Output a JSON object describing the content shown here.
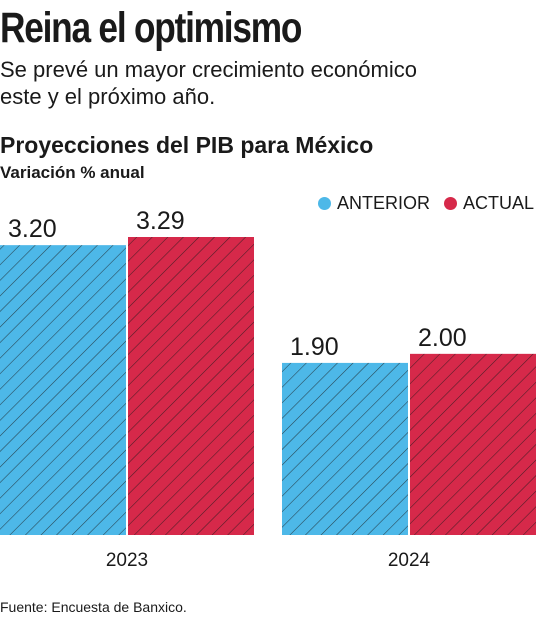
{
  "header": {
    "title": "Reina el optimismo",
    "subtitle_lines": [
      "Se prevé un mayor crecimiento económico",
      "este y el próximo año."
    ]
  },
  "colors": {
    "anterior": "#4db8e8",
    "actual": "#d6294a",
    "hatch": "#1a1a1a"
  },
  "chart_data": {
    "type": "bar",
    "title": "Proyecciones del PIB para México",
    "subtitle": "Variación % anual",
    "categories": [
      "2023",
      "2024"
    ],
    "series": [
      {
        "name": "ANTERIOR",
        "values": [
          3.2,
          1.9
        ],
        "labels": [
          "3.20",
          "1.90"
        ]
      },
      {
        "name": "ACTUAL",
        "values": [
          3.29,
          2.0
        ],
        "labels": [
          "3.29",
          "2.00"
        ]
      }
    ],
    "ylim": [
      0,
      3.29
    ],
    "legend": "top-right",
    "grid": false
  },
  "footer": {
    "source": "Fuente: Encuesta de Banxico."
  }
}
